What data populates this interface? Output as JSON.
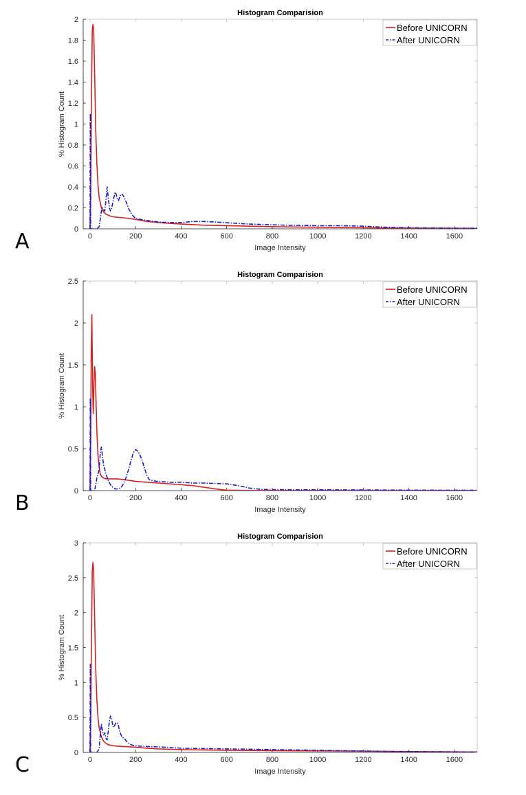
{
  "colors": {
    "before": "#d42020",
    "after": "#1c1cc8",
    "axis": "#262626",
    "frame": "#bdbdbd"
  },
  "chart_data": [
    {
      "panel": "A",
      "type": "line",
      "title": "Histogram Comparision",
      "xlabel": "Image Intensity",
      "ylabel": "% Histogram Count",
      "xlim": [
        -30,
        1700
      ],
      "ylim": [
        0,
        2
      ],
      "xticks": [
        0,
        200,
        400,
        600,
        800,
        1000,
        1200,
        1400,
        1600
      ],
      "yticks": [
        0,
        0.2,
        0.4,
        0.6,
        0.8,
        1,
        1.2,
        1.4,
        1.6,
        1.8,
        2
      ],
      "ytick_labels": [
        "0",
        "0.2",
        "0.4",
        "0.6",
        "0.8",
        "1",
        "1.2",
        "1.4",
        "1.6",
        "1.8",
        "2"
      ],
      "legend": {
        "location": "top-right",
        "entries": [
          "Before UNICORN",
          "After UNICORN"
        ]
      },
      "series": [
        {
          "name": "Before UNICORN",
          "style": "solid",
          "x": [
            0,
            3,
            6,
            10,
            13,
            16,
            20,
            25,
            30,
            35,
            40,
            50,
            60,
            70,
            80,
            100,
            120,
            150,
            200,
            250,
            300,
            400,
            500,
            600,
            700,
            800,
            1000,
            1200,
            1400,
            1700
          ],
          "y": [
            0.0,
            0.3,
            1.2,
            1.9,
            1.95,
            1.9,
            1.5,
            0.95,
            0.62,
            0.42,
            0.3,
            0.2,
            0.16,
            0.14,
            0.13,
            0.115,
            0.11,
            0.105,
            0.09,
            0.07,
            0.06,
            0.045,
            0.035,
            0.03,
            0.025,
            0.02,
            0.015,
            0.01,
            0.006,
            0.004
          ]
        },
        {
          "name": "After UNICORN",
          "style": "dashdot",
          "x": [
            0,
            1,
            2,
            3,
            5,
            10,
            20,
            30,
            40,
            50,
            55,
            60,
            65,
            70,
            75,
            80,
            85,
            90,
            95,
            100,
            105,
            110,
            115,
            120,
            125,
            130,
            135,
            140,
            145,
            150,
            160,
            170,
            180,
            190,
            200,
            210,
            220,
            250,
            300,
            350,
            400,
            450,
            500,
            550,
            600,
            700,
            800,
            900,
            1000,
            1100,
            1200,
            1300,
            1400,
            1500,
            1600,
            1700
          ],
          "y": [
            0.0,
            1.1,
            1.05,
            0.0,
            0.0,
            0.0,
            0.0,
            0.0,
            0.02,
            0.17,
            0.2,
            0.18,
            0.17,
            0.28,
            0.4,
            0.3,
            0.2,
            0.17,
            0.2,
            0.25,
            0.3,
            0.35,
            0.33,
            0.28,
            0.27,
            0.3,
            0.33,
            0.33,
            0.32,
            0.3,
            0.25,
            0.19,
            0.15,
            0.12,
            0.1,
            0.095,
            0.09,
            0.08,
            0.065,
            0.06,
            0.06,
            0.07,
            0.07,
            0.065,
            0.058,
            0.045,
            0.038,
            0.033,
            0.03,
            0.03,
            0.025,
            0.015,
            0.01,
            0.008,
            0.006,
            0.005
          ]
        }
      ]
    },
    {
      "panel": "B",
      "type": "line",
      "title": "Histogram Comparision",
      "xlabel": "Image Intensity",
      "ylabel": "% Histogram Count",
      "xlim": [
        -30,
        1700
      ],
      "ylim": [
        0,
        2.5
      ],
      "xticks": [
        0,
        200,
        400,
        600,
        800,
        1000,
        1200,
        1400,
        1600
      ],
      "yticks": [
        0,
        0.5,
        1,
        1.5,
        2,
        2.5
      ],
      "ytick_labels": [
        "0",
        "0.5",
        "1",
        "1.5",
        "2",
        "2.5"
      ],
      "legend": {
        "location": "top-right",
        "entries": [
          "Before UNICORN",
          "After UNICORN"
        ]
      },
      "series": [
        {
          "name": "Before UNICORN",
          "style": "solid",
          "x": [
            0,
            3,
            5,
            8,
            11,
            14,
            17,
            20,
            23,
            27,
            30,
            35,
            40,
            45,
            50,
            60,
            70,
            80,
            100,
            120,
            150,
            200,
            250,
            300,
            350,
            400,
            450,
            500,
            550,
            600,
            700,
            800,
            1000,
            1200,
            1400,
            1700
          ],
          "y": [
            0.0,
            0.6,
            1.6,
            2.1,
            1.3,
            0.92,
            1.25,
            1.48,
            1.4,
            1.0,
            0.7,
            0.42,
            0.28,
            0.2,
            0.17,
            0.15,
            0.14,
            0.14,
            0.14,
            0.14,
            0.13,
            0.11,
            0.1,
            0.09,
            0.08,
            0.07,
            0.06,
            0.04,
            0.02,
            0.005,
            0.002,
            0.002,
            0.002,
            0.002,
            0.002,
            0.002
          ]
        },
        {
          "name": "After UNICORN",
          "style": "dashdot",
          "x": [
            0,
            1,
            2,
            3,
            5,
            10,
            20,
            30,
            35,
            40,
            45,
            50,
            55,
            60,
            70,
            80,
            90,
            100,
            110,
            120,
            130,
            140,
            150,
            160,
            170,
            180,
            190,
            200,
            210,
            220,
            230,
            240,
            250,
            260,
            280,
            300,
            350,
            400,
            450,
            500,
            550,
            600,
            650,
            700,
            750,
            800,
            900,
            1000,
            1200,
            1400,
            1600,
            1700
          ],
          "y": [
            0.0,
            1.1,
            1.05,
            0.0,
            0.0,
            0.0,
            0.0,
            0.15,
            0.2,
            0.25,
            0.45,
            0.52,
            0.4,
            0.3,
            0.2,
            0.12,
            0.07,
            0.04,
            0.02,
            0.02,
            0.025,
            0.05,
            0.1,
            0.17,
            0.26,
            0.36,
            0.45,
            0.49,
            0.47,
            0.42,
            0.35,
            0.26,
            0.18,
            0.13,
            0.115,
            0.11,
            0.1,
            0.1,
            0.09,
            0.09,
            0.085,
            0.08,
            0.06,
            0.03,
            0.015,
            0.012,
            0.01,
            0.01,
            0.008,
            0.006,
            0.005,
            0.004
          ]
        }
      ]
    },
    {
      "panel": "C",
      "type": "line",
      "title": "Histogram Comparision",
      "xlabel": "Image Intensity",
      "ylabel": "% Histogram Count",
      "xlim": [
        -30,
        1700
      ],
      "ylim": [
        0,
        3
      ],
      "xticks": [
        0,
        200,
        400,
        600,
        800,
        1000,
        1200,
        1400,
        1600
      ],
      "yticks": [
        0,
        0.5,
        1,
        1.5,
        2,
        2.5,
        3
      ],
      "ytick_labels": [
        "0",
        "0.5",
        "1",
        "1.5",
        "2",
        "2.5",
        "3"
      ],
      "legend": {
        "location": "top-right",
        "entries": [
          "Before UNICORN",
          "After UNICORN"
        ]
      },
      "series": [
        {
          "name": "Before UNICORN",
          "style": "solid",
          "x": [
            0,
            3,
            6,
            10,
            13,
            16,
            20,
            25,
            30,
            35,
            40,
            50,
            60,
            70,
            80,
            100,
            120,
            150,
            200,
            250,
            300,
            400,
            500,
            600,
            700,
            800,
            1000,
            1200,
            1400,
            1700
          ],
          "y": [
            0.0,
            0.4,
            1.5,
            2.6,
            2.72,
            2.6,
            1.95,
            1.2,
            0.75,
            0.5,
            0.35,
            0.22,
            0.16,
            0.13,
            0.11,
            0.095,
            0.09,
            0.085,
            0.075,
            0.06,
            0.05,
            0.04,
            0.035,
            0.03,
            0.028,
            0.026,
            0.022,
            0.018,
            0.012,
            0.006
          ]
        },
        {
          "name": "After UNICORN",
          "style": "dashdot",
          "x": [
            0,
            1,
            2,
            3,
            5,
            10,
            20,
            30,
            40,
            45,
            50,
            55,
            60,
            65,
            70,
            75,
            80,
            85,
            90,
            95,
            100,
            105,
            110,
            115,
            120,
            125,
            130,
            135,
            140,
            150,
            160,
            170,
            180,
            190,
            200,
            220,
            250,
            300,
            350,
            400,
            500,
            600,
            700,
            800,
            900,
            1000,
            1100,
            1200,
            1300,
            1400,
            1500,
            1600,
            1700
          ],
          "y": [
            0.0,
            1.26,
            1.2,
            0.0,
            0.0,
            0.0,
            0.0,
            0.0,
            0.05,
            0.25,
            0.4,
            0.3,
            0.25,
            0.28,
            0.2,
            0.18,
            0.3,
            0.45,
            0.52,
            0.48,
            0.38,
            0.36,
            0.4,
            0.43,
            0.42,
            0.38,
            0.3,
            0.26,
            0.22,
            0.2,
            0.16,
            0.13,
            0.11,
            0.1,
            0.095,
            0.09,
            0.085,
            0.08,
            0.07,
            0.06,
            0.055,
            0.05,
            0.045,
            0.04,
            0.035,
            0.03,
            0.025,
            0.02,
            0.015,
            0.012,
            0.01,
            0.008,
            0.006
          ]
        }
      ]
    }
  ]
}
